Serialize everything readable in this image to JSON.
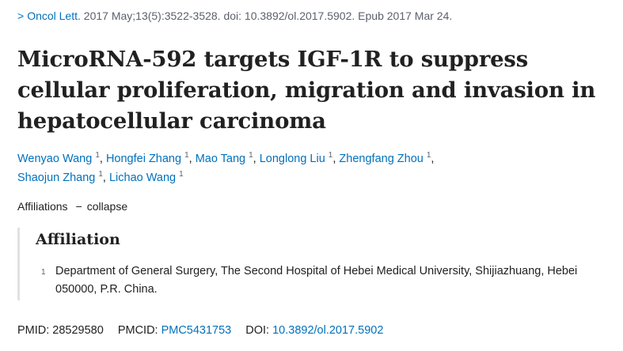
{
  "citation": {
    "journal": "Oncol Lett.",
    "details": "2017 May;13(5):3522-3528. doi: 10.3892/ol.2017.5902. Epub 2017 Mar 24."
  },
  "article": {
    "title": "MicroRNA-592 targets IGF-1R to suppress cellular proliferation, migration and invasion in hepatocellular carcinoma"
  },
  "authors": [
    {
      "name": "Wenyao Wang",
      "aff": "1"
    },
    {
      "name": "Hongfei Zhang",
      "aff": "1"
    },
    {
      "name": "Mao Tang",
      "aff": "1"
    },
    {
      "name": "Longlong Liu",
      "aff": "1"
    },
    {
      "name": "Zhengfang Zhou",
      "aff": "1"
    },
    {
      "name": "Shaojun Zhang",
      "aff": "1"
    },
    {
      "name": "Lichao Wang",
      "aff": "1"
    }
  ],
  "affiliations": {
    "toggle_label": "Affiliations",
    "dash": "−",
    "collapse_label": "collapse",
    "heading": "Affiliation",
    "items": [
      {
        "num": "1",
        "text": "Department of General Surgery, The Second Hospital of Hebei Medical University, Shijiazhuang, Hebei 050000, P.R. China."
      }
    ]
  },
  "identifiers": {
    "pmid_label": "PMID:",
    "pmid": "28529580",
    "pmcid_label": "PMCID:",
    "pmcid": "PMC5431753",
    "doi_label": "DOI:",
    "doi": "10.3892/ol.2017.5902"
  },
  "colors": {
    "link": "#0071bc",
    "text": "#212121",
    "muted": "#5b616b"
  }
}
